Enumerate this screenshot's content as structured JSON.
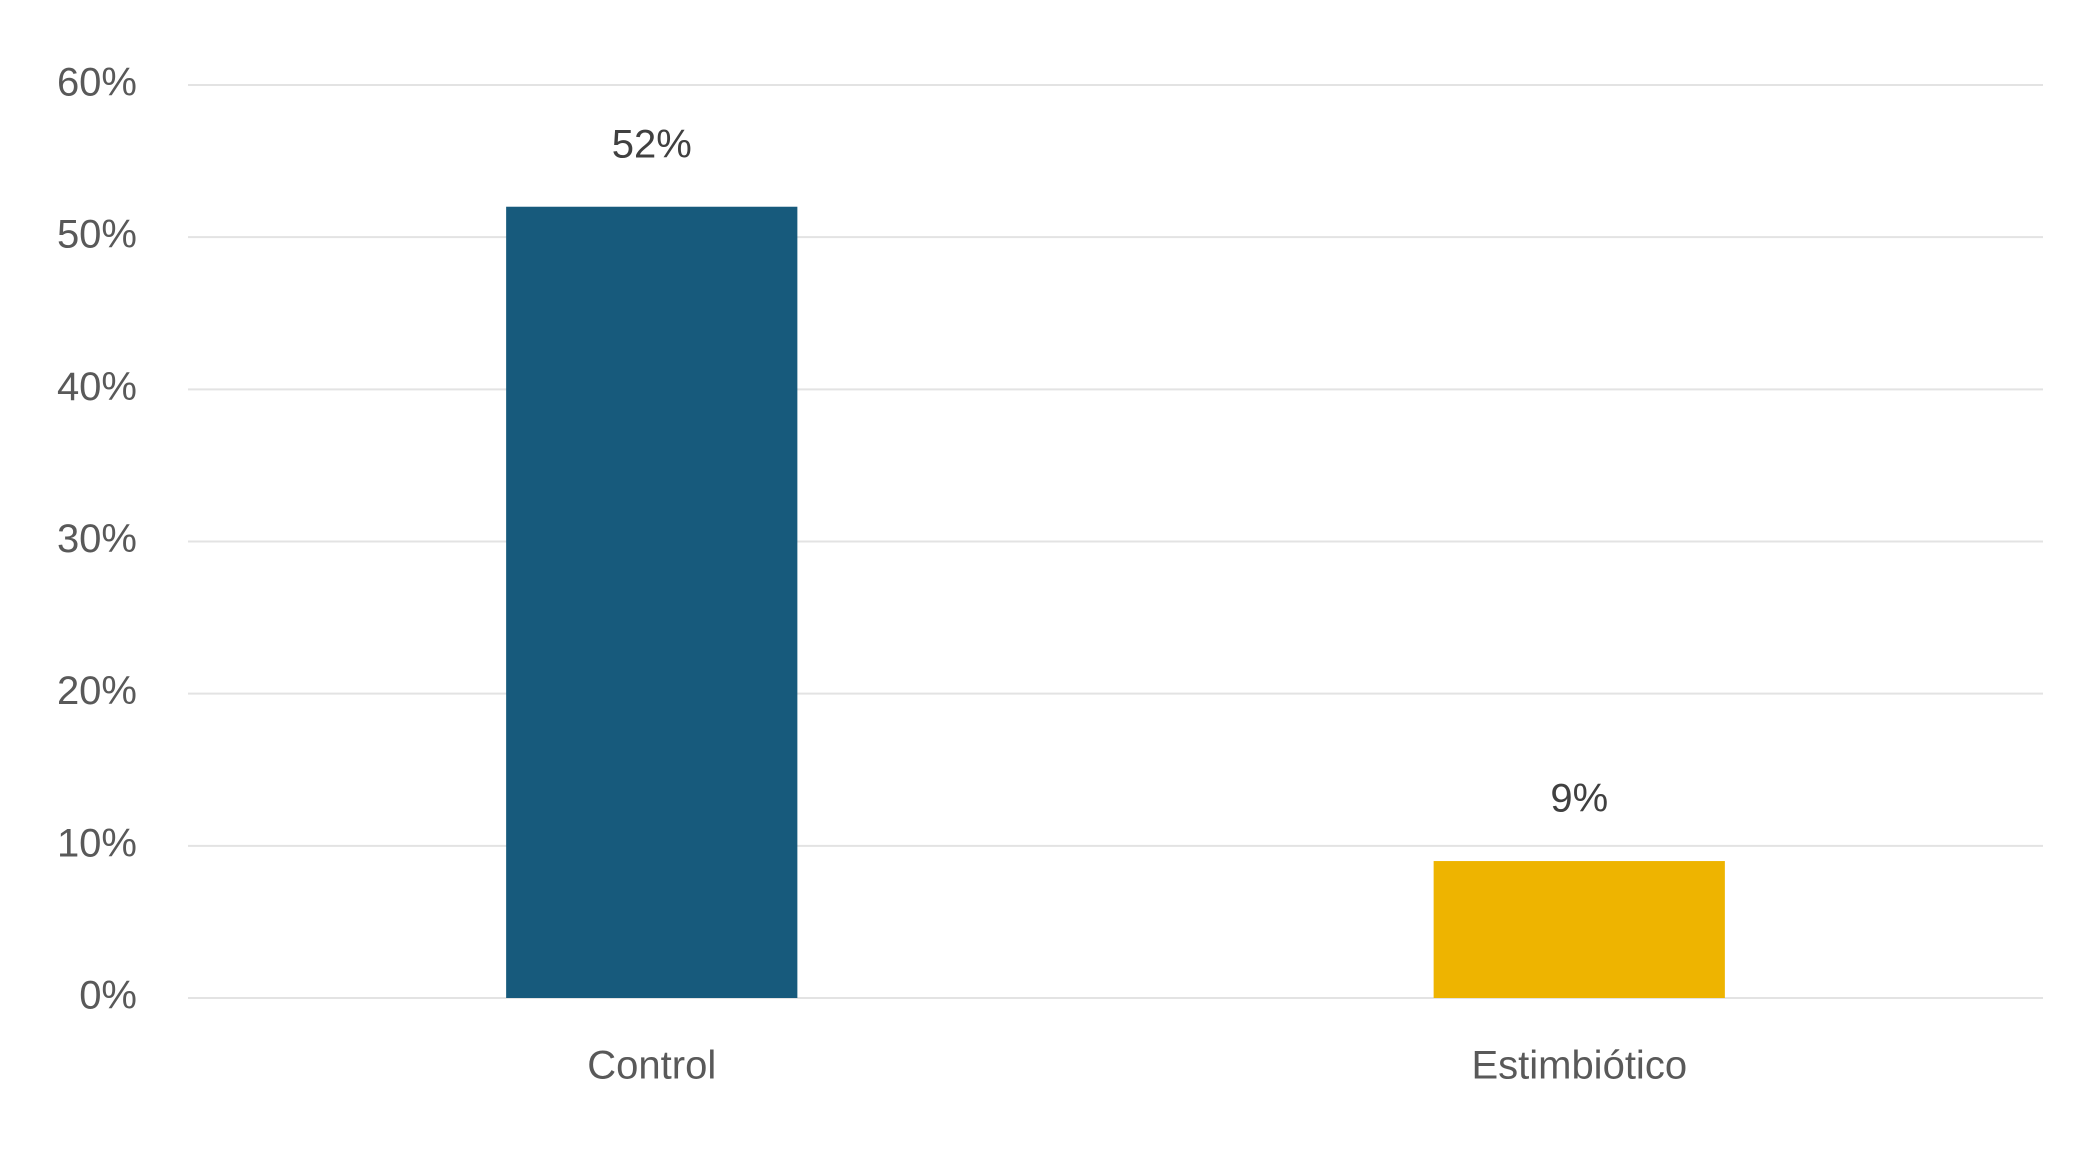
{
  "chart_data": {
    "type": "bar",
    "categories": [
      "Control",
      "Estimbiótico"
    ],
    "values": [
      52,
      9
    ],
    "value_labels": [
      "52%",
      "9%"
    ],
    "colors": [
      "#175a7c",
      "#eeb400"
    ],
    "ylim": [
      0,
      60
    ],
    "yticks": [
      {
        "value": 0,
        "label": "0%"
      },
      {
        "value": 10,
        "label": "10%"
      },
      {
        "value": 20,
        "label": "20%"
      },
      {
        "value": 30,
        "label": "30%"
      },
      {
        "value": 40,
        "label": "40%"
      },
      {
        "value": 50,
        "label": "50%"
      },
      {
        "value": 60,
        "label": "60%"
      }
    ],
    "grid": true
  }
}
